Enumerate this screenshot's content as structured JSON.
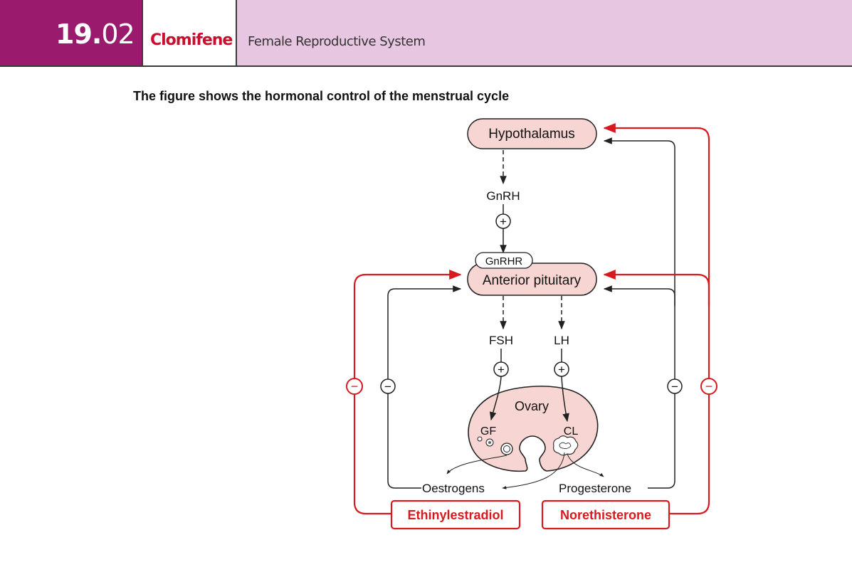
{
  "header": {
    "chapter_bold": "19.",
    "chapter_rest": "02",
    "drug_name": "Clomifene",
    "system": "Female Reproductive System"
  },
  "caption": "The figure shows the hormonal control of the menstrual cycle",
  "diagram": {
    "hypothalamus": "Hypothalamus",
    "gnrh": "GnRH",
    "gnrhr": "GnRHR",
    "anterior_pituitary": "Anterior pituitary",
    "fsh": "FSH",
    "lh": "LH",
    "ovary": "Ovary",
    "gf": "GF",
    "cl": "CL",
    "oestrogens": "Oestrogens",
    "progesterone": "Progesterone",
    "ethinylestradiol": "Ethinylestradiol",
    "norethisterone": "Norethisterone",
    "plus_sign": "+",
    "minus_sign": "−"
  },
  "colors": {
    "accent_red": "#d71920",
    "box_fill": "#f7d5d3",
    "header_purple": "#9a1b6e",
    "header_light": "#e6c6e0"
  }
}
